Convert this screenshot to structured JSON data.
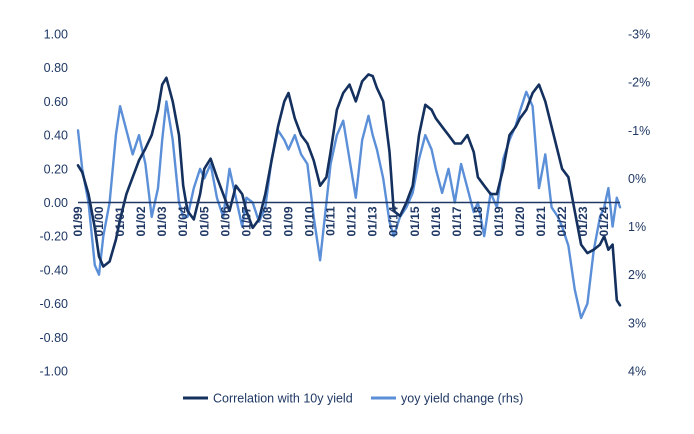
{
  "chart_data": {
    "type": "line",
    "title": "",
    "xlabel": "",
    "ylabel": "",
    "y2label": "",
    "grid": false,
    "legend_position": "bottom",
    "ylim": [
      -1.0,
      1.0
    ],
    "y2lim_inverted": [
      -3,
      4
    ],
    "y_ticks": [
      "1.00",
      "0.80",
      "0.60",
      "0.40",
      "0.20",
      "0.00",
      "-0.20",
      "-0.40",
      "-0.60",
      "-0.80",
      "-1.00"
    ],
    "y2_ticks": [
      "-3%",
      "-2%",
      "-1%",
      "0%",
      "1%",
      "2%",
      "3%",
      "4%"
    ],
    "x_ticks": [
      "01/99",
      "01/00",
      "01/01",
      "01/02",
      "01/03",
      "01/04",
      "01/05",
      "01/06",
      "01/07",
      "01/08",
      "01/09",
      "01/10",
      "01/11",
      "01/12",
      "01/13",
      "01/14",
      "01/15",
      "01/16",
      "01/17",
      "01/18",
      "01/19",
      "01/20",
      "01/21",
      "01/22",
      "01/23",
      "01/24"
    ],
    "x_range_years": [
      1999.0,
      2024.75
    ],
    "colors": {
      "correlation": "#14305e",
      "yoy": "#5b8fd8",
      "axis": "#1f3864"
    },
    "series": [
      {
        "name": "Correlation with 10y yield",
        "axis": "left",
        "x": [
          1999.0,
          1999.2,
          1999.5,
          1999.8,
          2000.0,
          2000.2,
          2000.5,
          2000.8,
          2001.0,
          2001.3,
          2001.6,
          2001.9,
          2002.2,
          2002.5,
          2002.8,
          2003.0,
          2003.2,
          2003.5,
          2003.8,
          2004.0,
          2004.2,
          2004.5,
          2004.8,
          2005.0,
          2005.3,
          2005.6,
          2005.9,
          2006.2,
          2006.5,
          2006.8,
          2007.0,
          2007.3,
          2007.6,
          2007.9,
          2008.2,
          2008.5,
          2008.8,
          2009.0,
          2009.3,
          2009.6,
          2009.9,
          2010.2,
          2010.5,
          2010.8,
          2011.0,
          2011.3,
          2011.6,
          2011.9,
          2012.2,
          2012.5,
          2012.8,
          2013.0,
          2013.2,
          2013.5,
          2013.8,
          2014.0,
          2014.3,
          2014.6,
          2014.9,
          2015.2,
          2015.5,
          2015.8,
          2016.0,
          2016.3,
          2016.6,
          2016.9,
          2017.2,
          2017.5,
          2017.8,
          2018.0,
          2018.3,
          2018.6,
          2018.9,
          2019.2,
          2019.5,
          2019.8,
          2020.0,
          2020.3,
          2020.6,
          2020.9,
          2021.2,
          2021.5,
          2021.8,
          2022.0,
          2022.3,
          2022.6,
          2022.9,
          2023.2,
          2023.5,
          2023.8,
          2024.0,
          2024.2,
          2024.4,
          2024.6,
          2024.75
        ],
        "values": [
          0.22,
          0.18,
          0.05,
          -0.15,
          -0.32,
          -0.38,
          -0.35,
          -0.22,
          -0.1,
          0.05,
          0.15,
          0.25,
          0.32,
          0.4,
          0.55,
          0.7,
          0.74,
          0.6,
          0.4,
          0.1,
          -0.05,
          -0.1,
          0.05,
          0.2,
          0.26,
          0.15,
          0.05,
          -0.05,
          0.1,
          0.05,
          -0.05,
          -0.15,
          -0.1,
          0.05,
          0.25,
          0.45,
          0.6,
          0.65,
          0.5,
          0.4,
          0.35,
          0.25,
          0.1,
          0.15,
          0.3,
          0.55,
          0.65,
          0.7,
          0.6,
          0.72,
          0.76,
          0.75,
          0.68,
          0.6,
          0.3,
          -0.05,
          -0.08,
          0.0,
          0.1,
          0.4,
          0.58,
          0.55,
          0.5,
          0.45,
          0.4,
          0.35,
          0.35,
          0.4,
          0.3,
          0.15,
          0.1,
          0.05,
          0.05,
          0.2,
          0.4,
          0.45,
          0.5,
          0.55,
          0.65,
          0.7,
          0.6,
          0.45,
          0.3,
          0.2,
          0.15,
          -0.05,
          -0.25,
          -0.3,
          -0.28,
          -0.25,
          -0.2,
          -0.28,
          -0.25,
          -0.58,
          -0.61
        ]
      },
      {
        "name": "yoy yield change (rhs)",
        "axis": "right",
        "x": [
          1999.0,
          1999.2,
          1999.5,
          1999.8,
          2000.0,
          2000.2,
          2000.5,
          2000.8,
          2001.0,
          2001.3,
          2001.6,
          2001.9,
          2002.2,
          2002.5,
          2002.8,
          2003.0,
          2003.2,
          2003.5,
          2003.8,
          2004.0,
          2004.2,
          2004.5,
          2004.8,
          2005.0,
          2005.3,
          2005.6,
          2005.9,
          2006.2,
          2006.5,
          2006.8,
          2007.0,
          2007.3,
          2007.6,
          2007.9,
          2008.2,
          2008.5,
          2008.8,
          2009.0,
          2009.3,
          2009.6,
          2009.9,
          2010.2,
          2010.5,
          2010.8,
          2011.0,
          2011.3,
          2011.6,
          2011.9,
          2012.2,
          2012.5,
          2012.8,
          2013.0,
          2013.2,
          2013.5,
          2013.8,
          2014.0,
          2014.3,
          2014.6,
          2014.9,
          2015.2,
          2015.5,
          2015.8,
          2016.0,
          2016.3,
          2016.6,
          2016.9,
          2017.2,
          2017.5,
          2017.8,
          2018.0,
          2018.3,
          2018.6,
          2018.9,
          2019.2,
          2019.5,
          2019.8,
          2020.0,
          2020.3,
          2020.6,
          2020.9,
          2021.2,
          2021.5,
          2021.8,
          2022.0,
          2022.3,
          2022.6,
          2022.9,
          2023.2,
          2023.5,
          2023.8,
          2024.0,
          2024.2,
          2024.4,
          2024.6,
          2024.75
        ],
        "values": [
          -1.0,
          -0.2,
          0.5,
          1.8,
          2.0,
          1.2,
          0.5,
          -0.9,
          -1.5,
          -1.0,
          -0.5,
          -0.9,
          -0.3,
          0.8,
          0.2,
          -0.8,
          -1.6,
          -0.8,
          0.5,
          0.8,
          0.8,
          0.2,
          -0.2,
          0.0,
          -0.3,
          0.4,
          0.8,
          -0.2,
          0.4,
          1.0,
          0.4,
          0.5,
          0.9,
          0.6,
          -0.4,
          -1.0,
          -0.8,
          -0.6,
          -0.9,
          -0.5,
          -0.3,
          0.8,
          1.7,
          0.5,
          -0.3,
          -0.9,
          -1.2,
          -0.4,
          0.4,
          -0.8,
          -1.3,
          -0.9,
          -0.6,
          0.0,
          0.9,
          1.2,
          0.8,
          0.6,
          0.3,
          -0.4,
          -0.9,
          -0.6,
          -0.2,
          0.3,
          -0.2,
          0.5,
          -0.3,
          0.2,
          0.7,
          0.5,
          1.2,
          0.3,
          0.6,
          -0.4,
          -0.8,
          -1.1,
          -1.4,
          -1.8,
          -1.5,
          0.2,
          -0.5,
          0.6,
          0.8,
          1.0,
          1.4,
          2.3,
          2.9,
          2.6,
          1.5,
          0.8,
          0.6,
          0.2,
          1.0,
          0.4,
          0.6
        ]
      }
    ]
  }
}
